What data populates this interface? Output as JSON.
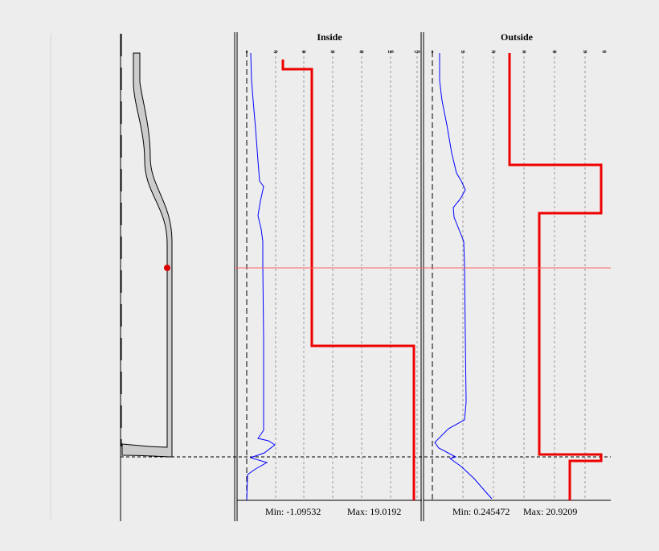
{
  "panels": {
    "inside": {
      "title": "Inside",
      "ticks": [
        "0",
        "20",
        "40",
        "60",
        "80",
        "100",
        "120"
      ],
      "min_label": "Min: -1.09532",
      "max_label": "Max: 19.0192"
    },
    "outside": {
      "title": "Outside",
      "ticks": [
        "0",
        "10",
        "20",
        "30",
        "40",
        "50",
        "60"
      ],
      "min_label": "Min: 0.245472",
      "max_label": "Max: 20.9209"
    }
  },
  "colors": {
    "background": "#ededed",
    "profile_line": "#0000ff",
    "threshold_line": "#ee0000",
    "cursor_line": "#ff6060",
    "marker": "#dd0000",
    "bottle_fill": "#cccccc"
  }
}
